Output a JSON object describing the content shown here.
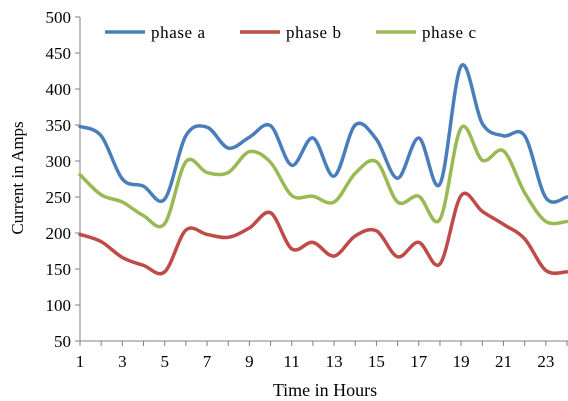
{
  "chart_data": {
    "type": "line",
    "title": "",
    "xlabel": "Time in Hours",
    "ylabel": "Current in Amps",
    "xlim": [
      1,
      24
    ],
    "ylim": [
      50,
      500
    ],
    "xticks": [
      1,
      3,
      5,
      7,
      9,
      11,
      13,
      15,
      17,
      19,
      21,
      23
    ],
    "yticks": [
      50,
      100,
      150,
      200,
      250,
      300,
      350,
      400,
      450,
      500
    ],
    "x": [
      1,
      2,
      3,
      4,
      5,
      6,
      7,
      8,
      9,
      10,
      11,
      12,
      13,
      14,
      15,
      16,
      17,
      18,
      19,
      20,
      21,
      22,
      23,
      24
    ],
    "grid": false,
    "legend_position": "top",
    "series": [
      {
        "name": "phase a",
        "color": "#4a7ebb",
        "values": [
          348,
          335,
          275,
          265,
          247,
          335,
          347,
          318,
          333,
          349,
          294,
          332,
          279,
          350,
          330,
          276,
          332,
          268,
          432,
          352,
          335,
          335,
          249,
          250
        ]
      },
      {
        "name": "phase b",
        "color": "#be4b48",
        "values": [
          198,
          188,
          166,
          155,
          146,
          204,
          198,
          194,
          207,
          228,
          178,
          187,
          168,
          196,
          203,
          167,
          187,
          157,
          252,
          230,
          212,
          192,
          148,
          146
        ]
      },
      {
        "name": "phase c",
        "color": "#98b954",
        "values": [
          281,
          253,
          243,
          224,
          213,
          299,
          284,
          284,
          313,
          298,
          252,
          251,
          243,
          283,
          299,
          243,
          251,
          219,
          346,
          301,
          314,
          256,
          216,
          216
        ]
      }
    ]
  }
}
